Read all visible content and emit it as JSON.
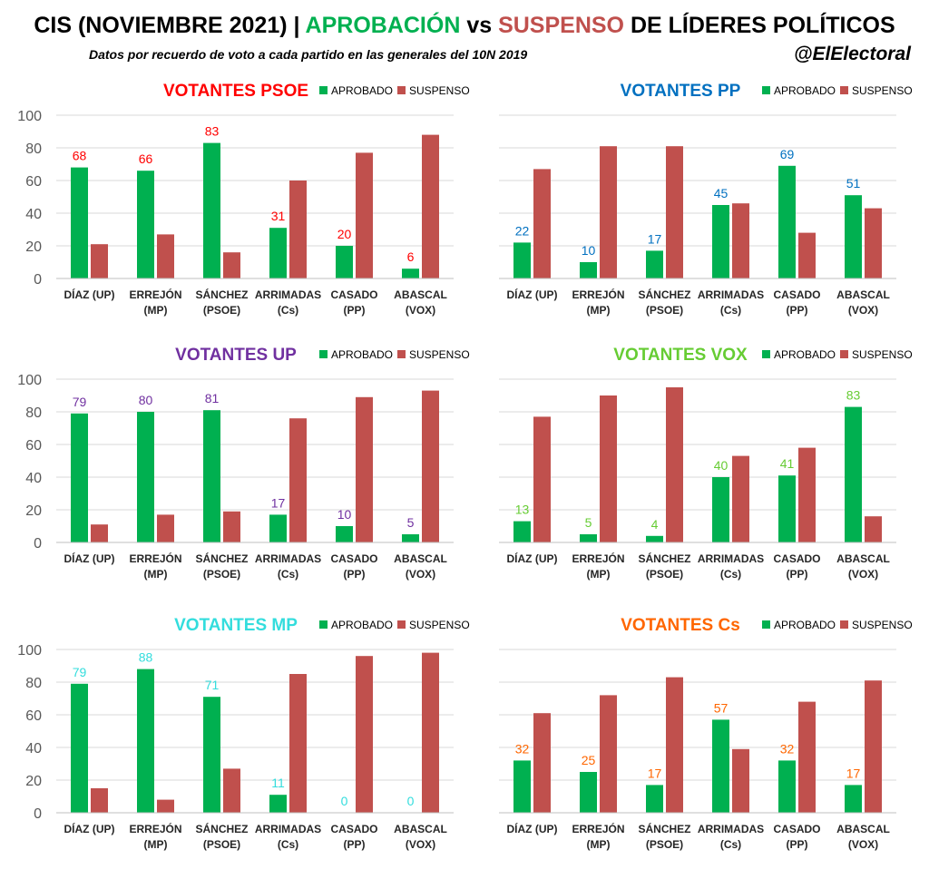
{
  "header": {
    "title_parts": [
      {
        "text": "CIS (NOVIEMBRE 2021) | ",
        "color": "#000000"
      },
      {
        "text": "APROBACIÓN",
        "color": "#00b050"
      },
      {
        "text": " vs ",
        "color": "#000000"
      },
      {
        "text": "SUSPENSO",
        "color": "#c0504d"
      },
      {
        "text": " DE LÍDERES POLÍTICOS",
        "color": "#000000"
      }
    ],
    "subtitle": "Datos por recuerdo de voto a cada partido en las generales del 10N 2019",
    "handle": "@ElElectoral"
  },
  "colors": {
    "aprobado": "#00b050",
    "suspenso": "#c0504d",
    "grid": "#d9d9d9",
    "axis_text": "#595959"
  },
  "legend": {
    "aprobado": "APROBADO",
    "suspenso": "SUSPENSO"
  },
  "chart_data": [
    {
      "type": "bar",
      "title": "VOTANTES PSOE",
      "title_color": "#ff0000",
      "label_color": "#ff0000",
      "categories": [
        [
          "DÍAZ (UP)"
        ],
        [
          "ERREJÓN",
          "(MP)"
        ],
        [
          "SÁNCHEZ",
          "(PSOE)"
        ],
        [
          "ARRIMADAS",
          "(Cs)"
        ],
        [
          "CASADO",
          "(PP)"
        ],
        [
          "ABASCAL",
          "(VOX)"
        ]
      ],
      "series": [
        {
          "name": "APROBADO",
          "values": [
            68,
            66,
            83,
            31,
            20,
            6
          ]
        },
        {
          "name": "SUSPENSO",
          "values": [
            21,
            27,
            16,
            60,
            77,
            88
          ]
        }
      ],
      "ylim": [
        0,
        100
      ],
      "yticks": [
        0,
        20,
        40,
        60,
        80,
        100
      ],
      "legend": "top-right",
      "grid": true
    },
    {
      "type": "bar",
      "title": "VOTANTES PP",
      "title_color": "#0070c0",
      "label_color": "#0070c0",
      "categories": [
        [
          "DÍAZ (UP)"
        ],
        [
          "ERREJÓN",
          "(MP)"
        ],
        [
          "SÁNCHEZ",
          "(PSOE)"
        ],
        [
          "ARRIMADAS",
          "(Cs)"
        ],
        [
          "CASADO",
          "(PP)"
        ],
        [
          "ABASCAL",
          "(VOX)"
        ]
      ],
      "series": [
        {
          "name": "APROBADO",
          "values": [
            22,
            10,
            17,
            45,
            69,
            51
          ]
        },
        {
          "name": "SUSPENSO",
          "values": [
            67,
            81,
            81,
            46,
            28,
            43
          ]
        }
      ],
      "ylim": [
        0,
        100
      ],
      "yticks": [],
      "legend": "top-right",
      "grid": true
    },
    {
      "type": "bar",
      "title": "VOTANTES UP",
      "title_color": "#7030a0",
      "label_color": "#7030a0",
      "categories": [
        [
          "DÍAZ (UP)"
        ],
        [
          "ERREJÓN",
          "(MP)"
        ],
        [
          "SÁNCHEZ",
          "(PSOE)"
        ],
        [
          "ARRIMADAS",
          "(Cs)"
        ],
        [
          "CASADO",
          "(PP)"
        ],
        [
          "ABASCAL",
          "(VOX)"
        ]
      ],
      "series": [
        {
          "name": "APROBADO",
          "values": [
            79,
            80,
            81,
            17,
            10,
            5
          ]
        },
        {
          "name": "SUSPENSO",
          "values": [
            11,
            17,
            19,
            76,
            89,
            93
          ]
        }
      ],
      "ylim": [
        0,
        100
      ],
      "yticks": [
        0,
        20,
        40,
        60,
        80,
        100
      ],
      "legend": "top-right",
      "grid": true
    },
    {
      "type": "bar",
      "title": "VOTANTES VOX",
      "title_color": "#66cc33",
      "label_color": "#66cc33",
      "categories": [
        [
          "DÍAZ (UP)"
        ],
        [
          "ERREJÓN",
          "(MP)"
        ],
        [
          "SÁNCHEZ",
          "(PSOE)"
        ],
        [
          "ARRIMADAS",
          "(Cs)"
        ],
        [
          "CASADO",
          "(PP)"
        ],
        [
          "ABASCAL",
          "(VOX)"
        ]
      ],
      "series": [
        {
          "name": "APROBADO",
          "values": [
            13,
            5,
            4,
            40,
            41,
            83
          ]
        },
        {
          "name": "SUSPENSO",
          "values": [
            77,
            90,
            95,
            53,
            58,
            16
          ]
        }
      ],
      "ylim": [
        0,
        100
      ],
      "yticks": [],
      "legend": "top-right",
      "grid": true
    },
    {
      "type": "bar",
      "title": "VOTANTES MP",
      "title_color": "#33dddd",
      "label_color": "#33dddd",
      "categories": [
        [
          "DÍAZ (UP)"
        ],
        [
          "ERREJÓN",
          "(MP)"
        ],
        [
          "SÁNCHEZ",
          "(PSOE)"
        ],
        [
          "ARRIMADAS",
          "(Cs)"
        ],
        [
          "CASADO",
          "(PP)"
        ],
        [
          "ABASCAL",
          "(VOX)"
        ]
      ],
      "series": [
        {
          "name": "APROBADO",
          "values": [
            79,
            88,
            71,
            11,
            0,
            0
          ]
        },
        {
          "name": "SUSPENSO",
          "values": [
            15,
            8,
            27,
            85,
            96,
            98
          ]
        }
      ],
      "ylim": [
        0,
        100
      ],
      "yticks": [
        0,
        20,
        40,
        60,
        80,
        100
      ],
      "legend": "top-right",
      "grid": true
    },
    {
      "type": "bar",
      "title": "VOTANTES Cs",
      "title_color": "#ff6600",
      "label_color": "#ff6600",
      "categories": [
        [
          "DÍAZ (UP)"
        ],
        [
          "ERREJÓN",
          "(MP)"
        ],
        [
          "SÁNCHEZ",
          "(PSOE)"
        ],
        [
          "ARRIMADAS",
          "(Cs)"
        ],
        [
          "CASADO",
          "(PP)"
        ],
        [
          "ABASCAL",
          "(VOX)"
        ]
      ],
      "series": [
        {
          "name": "APROBADO",
          "values": [
            32,
            25,
            17,
            57,
            32,
            17
          ]
        },
        {
          "name": "SUSPENSO",
          "values": [
            61,
            72,
            83,
            39,
            68,
            81
          ]
        }
      ],
      "ylim": [
        0,
        100
      ],
      "yticks": [],
      "legend": "top-right",
      "grid": true
    }
  ]
}
